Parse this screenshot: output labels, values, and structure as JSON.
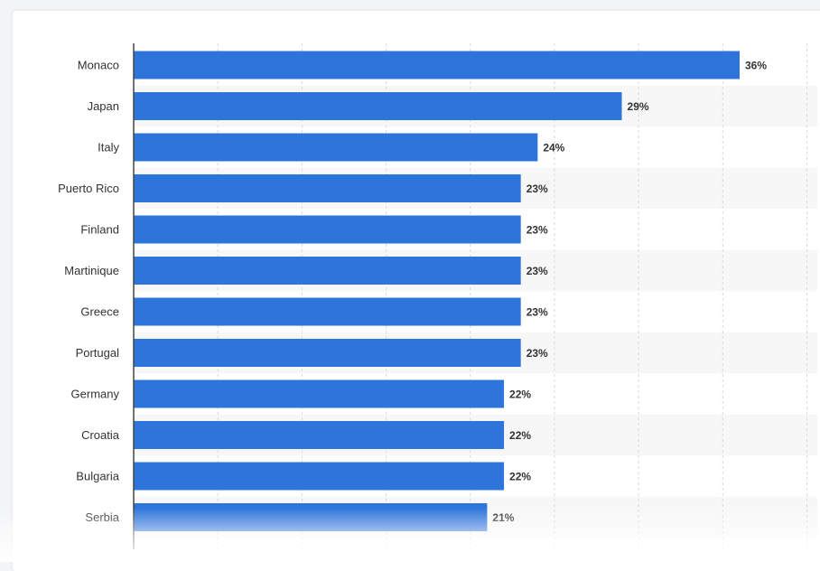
{
  "colors": {
    "bar": "#2e75db",
    "grid": "#d9d9d9",
    "stripe": "#f7f7f7",
    "axis": "#444444"
  },
  "chart_data": {
    "type": "bar",
    "orientation": "horizontal",
    "categories": [
      "Monaco",
      "Japan",
      "Italy",
      "Puerto Rico",
      "Finland",
      "Martinique",
      "Greece",
      "Portugal",
      "Germany",
      "Croatia",
      "Bulgaria",
      "Serbia"
    ],
    "values": [
      36,
      29,
      24,
      23,
      23,
      23,
      23,
      23,
      22,
      22,
      22,
      21
    ],
    "value_labels": [
      "36%",
      "29%",
      "24%",
      "23%",
      "23%",
      "23%",
      "23%",
      "23%",
      "22%",
      "22%",
      "22%",
      "21%"
    ],
    "xlim": [
      0,
      40
    ],
    "grid": true,
    "title": "",
    "xlabel": "",
    "ylabel": ""
  }
}
